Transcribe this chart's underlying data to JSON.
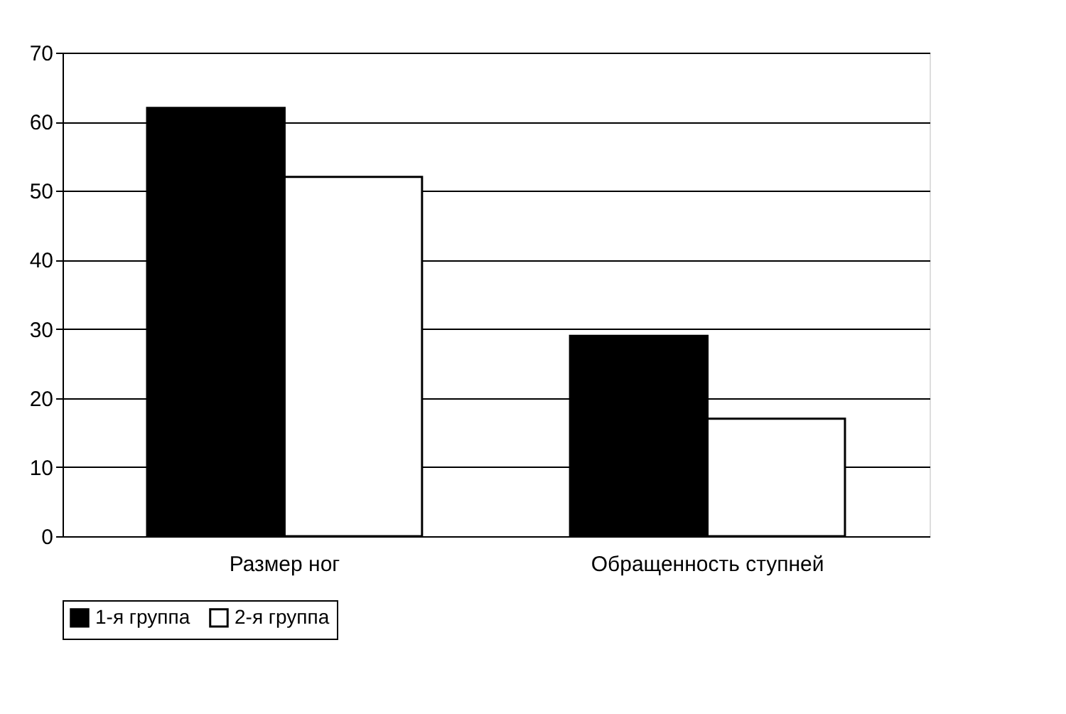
{
  "chart_data": {
    "type": "bar",
    "categories": [
      "Размер ног",
      "Обращенность ступней"
    ],
    "series": [
      {
        "name": "1-я группа",
        "color": "#000000",
        "values": [
          62,
          29
        ]
      },
      {
        "name": "2-я группа",
        "color": "#ffffff",
        "values": [
          52,
          17
        ]
      }
    ],
    "ylim": [
      0,
      70
    ],
    "yticks": [
      0,
      10,
      20,
      30,
      40,
      50,
      60,
      70
    ],
    "grid": "y",
    "legend": "bottom"
  }
}
